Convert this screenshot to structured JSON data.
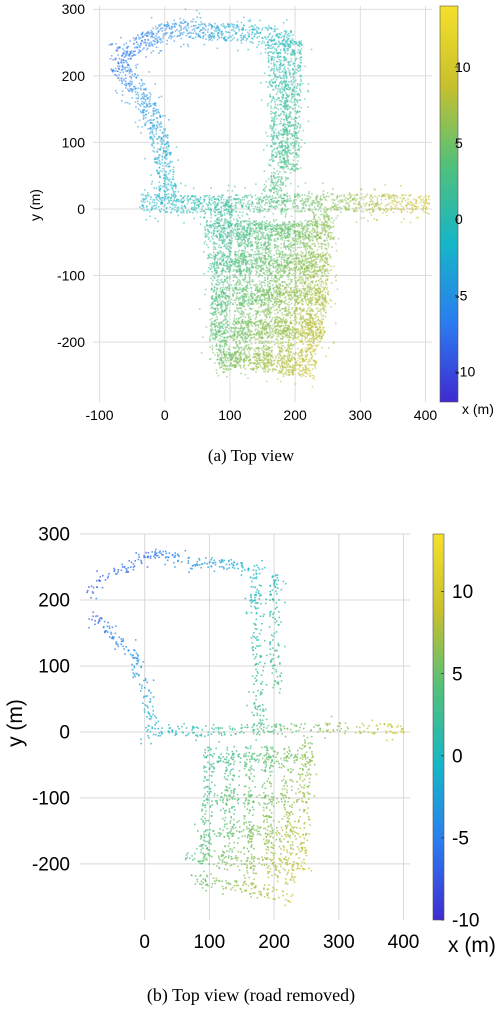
{
  "chart_data": [
    {
      "type": "scatter",
      "panel": "a",
      "caption": "(a)  Top view",
      "xlabel": "x (m)",
      "ylabel": "y (m)",
      "xlim": [
        -110,
        410
      ],
      "ylim": [
        -290,
        305
      ],
      "xticks": [
        -100,
        0,
        100,
        200,
        300,
        400
      ],
      "yticks": [
        -200,
        -100,
        0,
        100,
        200,
        300
      ],
      "grid": true,
      "colorbar": {
        "min": -12,
        "max": 14,
        "ticks": [
          10,
          5,
          0,
          -5,
          -10
        ]
      },
      "colormap": [
        "#3f2ad0",
        "#2b7cf0",
        "#15b6c7",
        "#52c07a",
        "#c8c02d",
        "#f5e02a"
      ],
      "roads_description": "dense aerial point cloud of a road network, colored by height",
      "road_segments": [
        [
          [
            -75,
            220
          ],
          [
            -60,
            240
          ],
          [
            -20,
            260
          ],
          [
            20,
            275
          ],
          [
            60,
            268
          ],
          [
            130,
            265
          ],
          [
            195,
            255
          ]
        ],
        [
          [
            -75,
            220
          ],
          [
            -45,
            185
          ],
          [
            -25,
            150
          ],
          [
            -10,
            110
          ],
          [
            0,
            60
          ],
          [
            5,
            10
          ]
        ],
        [
          [
            -40,
            10
          ],
          [
            60,
            8
          ],
          [
            170,
            10
          ],
          [
            260,
            12
          ],
          [
            330,
            10
          ],
          [
            405,
            8
          ]
        ],
        [
          [
            170,
            250
          ],
          [
            175,
            150
          ],
          [
            175,
            50
          ],
          [
            172,
            10
          ]
        ],
        [
          [
            195,
            255
          ],
          [
            195,
            150
          ],
          [
            190,
            60
          ]
        ],
        [
          [
            90,
            10
          ],
          [
            85,
            -100
          ],
          [
            80,
            -200
          ],
          [
            100,
            -240
          ]
        ],
        [
          [
            120,
            -20
          ],
          [
            120,
            -150
          ],
          [
            115,
            -230
          ]
        ],
        [
          [
            150,
            -20
          ],
          [
            150,
            -160
          ],
          [
            150,
            -240
          ]
        ],
        [
          [
            180,
            -20
          ],
          [
            180,
            -170
          ],
          [
            190,
            -250
          ]
        ],
        [
          [
            210,
            -20
          ],
          [
            210,
            -170
          ],
          [
            220,
            -240
          ]
        ],
        [
          [
            240,
            0
          ],
          [
            235,
            -100
          ],
          [
            230,
            -210
          ]
        ],
        [
          [
            60,
            -30
          ],
          [
            260,
            -30
          ]
        ],
        [
          [
            65,
            -80
          ],
          [
            255,
            -80
          ]
        ],
        [
          [
            70,
            -130
          ],
          [
            250,
            -130
          ]
        ],
        [
          [
            75,
            -180
          ],
          [
            240,
            -180
          ]
        ],
        [
          [
            80,
            -220
          ],
          [
            230,
            -240
          ]
        ]
      ]
    },
    {
      "type": "scatter",
      "panel": "b",
      "caption": "(b)  Top view (road removed)",
      "xlabel": "x (m)",
      "ylabel": "y (m)",
      "xlim": [
        -100,
        410
      ],
      "ylim": [
        -285,
        300
      ],
      "xticks": [
        0,
        100,
        200,
        300,
        400
      ],
      "yticks": [
        -200,
        -100,
        0,
        100,
        200,
        300
      ],
      "grid": true,
      "colorbar": {
        "min": -10,
        "max": 13.5,
        "ticks": [
          10,
          5,
          0,
          -5,
          -10
        ]
      },
      "colormap": [
        "#3f2ad0",
        "#2b7cf0",
        "#15b6c7",
        "#52c07a",
        "#c8c02d",
        "#f5e02a"
      ],
      "roads_description": "sparse point cloud outlining road edges and buildings, colored by height",
      "road_segments": [
        [
          [
            -90,
            210
          ],
          [
            -60,
            235
          ],
          [
            -20,
            255
          ],
          [
            10,
            275
          ],
          [
            60,
            260
          ],
          [
            130,
            255
          ],
          [
            185,
            245
          ]
        ],
        [
          [
            -85,
            180
          ],
          [
            -50,
            150
          ],
          [
            -20,
            120
          ],
          [
            0,
            60
          ],
          [
            10,
            10
          ]
        ],
        [
          [
            -10,
            0
          ],
          [
            80,
            2
          ],
          [
            170,
            5
          ],
          [
            260,
            8
          ],
          [
            400,
            5
          ]
        ],
        [
          [
            170,
            240
          ],
          [
            172,
            140
          ],
          [
            175,
            40
          ],
          [
            175,
            5
          ]
        ],
        [
          [
            200,
            240
          ],
          [
            200,
            130
          ],
          [
            205,
            60
          ]
        ],
        [
          [
            100,
            -20
          ],
          [
            95,
            -120
          ],
          [
            90,
            -200
          ]
        ],
        [
          [
            130,
            -20
          ],
          [
            130,
            -150
          ],
          [
            125,
            -210
          ]
        ],
        [
          [
            160,
            -20
          ],
          [
            160,
            -160
          ],
          [
            160,
            -230
          ]
        ],
        [
          [
            190,
            -20
          ],
          [
            190,
            -170
          ],
          [
            200,
            -240
          ]
        ],
        [
          [
            220,
            -20
          ],
          [
            220,
            -170
          ],
          [
            225,
            -230
          ]
        ],
        [
          [
            250,
            0
          ],
          [
            245,
            -120
          ],
          [
            240,
            -210
          ]
        ],
        [
          [
            90,
            -40
          ],
          [
            260,
            -40
          ]
        ],
        [
          [
            90,
            -100
          ],
          [
            255,
            -100
          ]
        ],
        [
          [
            90,
            -150
          ],
          [
            250,
            -150
          ]
        ],
        [
          [
            60,
            -190
          ],
          [
            240,
            -200
          ]
        ],
        [
          [
            70,
            -220
          ],
          [
            230,
            -250
          ]
        ]
      ]
    }
  ]
}
